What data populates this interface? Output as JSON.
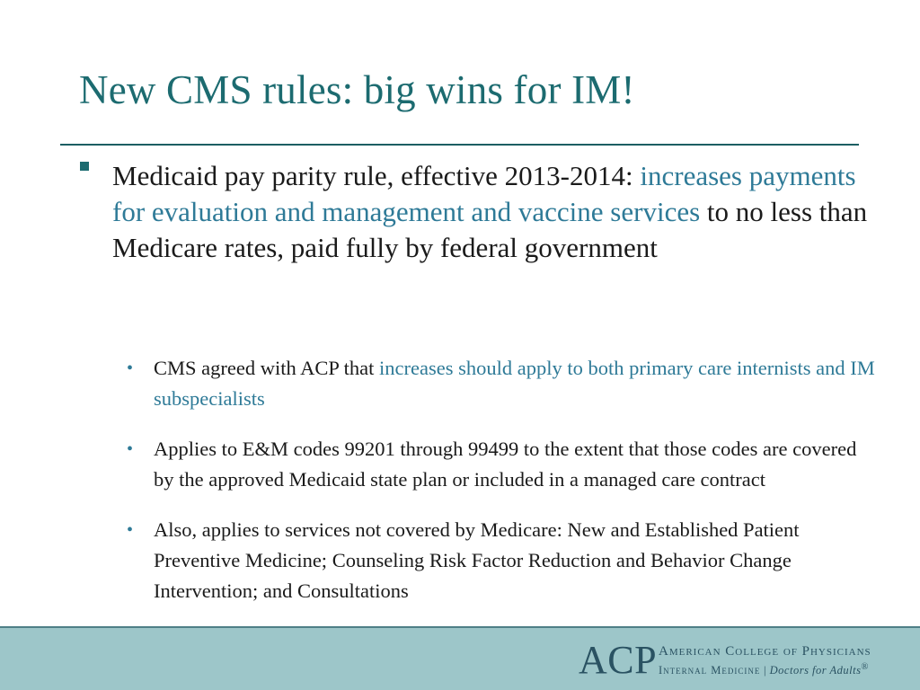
{
  "slide": {
    "title": "New CMS rules: big wins for IM!",
    "main_bullet": {
      "lead": "Medicaid pay parity rule, effective 2013-2014: ",
      "highlight": "increases payments for evaluation and management and vaccine services",
      "tail": " to no less than Medicare rates, paid fully by federal government"
    },
    "sub_bullets": [
      {
        "lead": "CMS agreed with ACP that ",
        "highlight": "increases should apply to both primary care internists and IM subspecialists",
        "tail": ""
      },
      {
        "lead": "Applies to E&M codes 99201 through 99499 to the extent that those codes are covered by the approved Medicaid state plan or included in a managed care contract",
        "highlight": "",
        "tail": ""
      },
      {
        "lead": "Also, applies to services not covered by Medicare: New and Established Patient Preventive Medicine;  Counseling Risk Factor Reduction and Behavior Change Intervention; and Consultations",
        "highlight": "",
        "tail": ""
      }
    ],
    "bullet_marker": "•"
  },
  "footer": {
    "logo_acronym": "ACP",
    "logo_org": "American College of Physicians",
    "logo_tagline_left": "Internal Medicine",
    "logo_separator": "|",
    "logo_tagline_right": "Doctors for Adults",
    "logo_registered": "®"
  },
  "colors": {
    "title": "#1c6b70",
    "accent_text": "#2e7a97",
    "body_text": "#1a1a1a",
    "footer_band": "#9dc6c9",
    "logo": "#2a5262"
  }
}
